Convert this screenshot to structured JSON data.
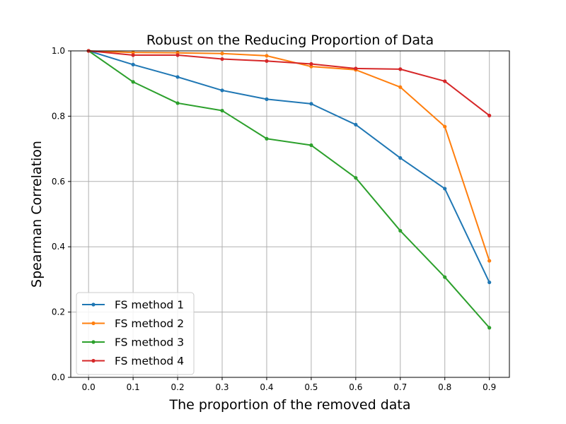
{
  "chart_data": {
    "type": "line",
    "title": "Robust on the Reducing Proportion of Data",
    "xlabel": "The proportion of the removed data",
    "ylabel": "Spearman Correlation",
    "x": [
      0.0,
      0.1,
      0.2,
      0.3,
      0.4,
      0.5,
      0.6,
      0.7,
      0.8,
      0.9
    ],
    "xlim": [
      -0.04,
      0.945
    ],
    "ylim": [
      0.0,
      1.0
    ],
    "xticks": [
      "0.0",
      "0.1",
      "0.2",
      "0.3",
      "0.4",
      "0.5",
      "0.6",
      "0.7",
      "0.8",
      "0.9"
    ],
    "yticks": [
      "0.0",
      "0.2",
      "0.4",
      "0.6",
      "0.8",
      "1.0"
    ],
    "grid": true,
    "legend_position": "lower-left",
    "series": [
      {
        "name": "FS method 1",
        "color": "#1f77b4",
        "values": [
          1.0,
          0.958,
          0.92,
          0.879,
          0.852,
          0.838,
          0.774,
          0.672,
          0.578,
          0.291
        ]
      },
      {
        "name": "FS method 2",
        "color": "#ff7f0e",
        "values": [
          1.0,
          0.995,
          0.994,
          0.992,
          0.985,
          0.952,
          0.942,
          0.889,
          0.768,
          0.357
        ]
      },
      {
        "name": "FS method 3",
        "color": "#2ca02c",
        "values": [
          1.0,
          0.905,
          0.84,
          0.817,
          0.731,
          0.711,
          0.611,
          0.449,
          0.307,
          0.152
        ]
      },
      {
        "name": "FS method 4",
        "color": "#d62728",
        "values": [
          1.0,
          0.987,
          0.987,
          0.975,
          0.969,
          0.96,
          0.946,
          0.944,
          0.907,
          0.802
        ]
      }
    ]
  }
}
